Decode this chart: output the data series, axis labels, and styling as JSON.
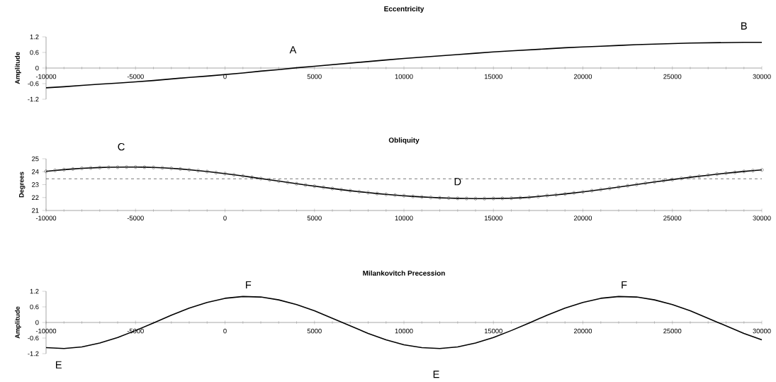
{
  "chart_data": [
    {
      "type": "line",
      "title": "Eccentricity",
      "ylabel": "Amplitude",
      "xlim": [
        -10000,
        30000
      ],
      "ylim": [
        -1.2,
        1.2
      ],
      "xticks": [
        -10000,
        -5000,
        0,
        5000,
        10000,
        15000,
        20000,
        25000,
        30000
      ],
      "yticks": [
        -1.2,
        -0.6,
        0,
        0.6,
        1.2
      ],
      "x": [
        -10000,
        -9000,
        -8000,
        -7000,
        -6000,
        -5000,
        -4000,
        -3000,
        -2000,
        -1000,
        0,
        1000,
        2000,
        3000,
        4000,
        5000,
        6000,
        7000,
        8000,
        9000,
        10000,
        11000,
        12000,
        13000,
        14000,
        15000,
        16000,
        17000,
        18000,
        19000,
        20000,
        21000,
        22000,
        23000,
        24000,
        25000,
        26000,
        27000,
        28000,
        29000,
        30000
      ],
      "series": [
        {
          "color": "#000000",
          "values": [
            -0.76,
            -0.72,
            -0.67,
            -0.62,
            -0.58,
            -0.53,
            -0.48,
            -0.42,
            -0.36,
            -0.31,
            -0.25,
            -0.19,
            -0.12,
            -0.06,
            0.01,
            0.07,
            0.13,
            0.19,
            0.25,
            0.31,
            0.37,
            0.42,
            0.47,
            0.52,
            0.57,
            0.62,
            0.66,
            0.7,
            0.74,
            0.78,
            0.81,
            0.84,
            0.87,
            0.9,
            0.92,
            0.94,
            0.96,
            0.97,
            0.98,
            0.99,
            0.99
          ]
        }
      ],
      "annotations": [
        {
          "text": "A",
          "x": 3800,
          "y": 0
        },
        {
          "text": "B",
          "x": 29000,
          "y": 0.99
        }
      ]
    },
    {
      "type": "line",
      "title": "Obliquity",
      "ylabel": "Degrees",
      "xlim": [
        -10000,
        30000
      ],
      "ylim": [
        21,
        25
      ],
      "marker": "circle",
      "xticks": [
        -10000,
        -5000,
        0,
        5000,
        10000,
        15000,
        20000,
        25000,
        30000
      ],
      "yticks": [
        21,
        22,
        23,
        24,
        25
      ],
      "x": [
        -10000,
        -9500,
        -9000,
        -8500,
        -8000,
        -7500,
        -7000,
        -6500,
        -6000,
        -5500,
        -5000,
        -4500,
        -4000,
        -3500,
        -3000,
        -2500,
        -2000,
        -1500,
        -1000,
        -500,
        0,
        500,
        1000,
        1500,
        2000,
        2500,
        3000,
        3500,
        4000,
        4500,
        5000,
        5500,
        6000,
        6500,
        7000,
        7500,
        8000,
        8500,
        9000,
        9500,
        10000,
        10500,
        11000,
        11500,
        12000,
        12500,
        13000,
        13500,
        14000,
        14500,
        15000,
        15500,
        16000,
        16500,
        17000,
        17500,
        18000,
        18500,
        19000,
        19500,
        20000,
        20500,
        21000,
        21500,
        22000,
        22500,
        23000,
        23500,
        24000,
        24500,
        25000,
        25500,
        26000,
        26500,
        27000,
        27500,
        28000,
        28500,
        29000,
        29500,
        30000
      ],
      "series": [
        {
          "color": "#000000",
          "values": [
            24.03,
            24.1,
            24.16,
            24.21,
            24.26,
            24.29,
            24.32,
            24.34,
            24.35,
            24.36,
            24.36,
            24.35,
            24.33,
            24.3,
            24.26,
            24.21,
            24.15,
            24.08,
            24.01,
            23.93,
            23.85,
            23.76,
            23.67,
            23.57,
            23.47,
            23.37,
            23.27,
            23.17,
            23.07,
            22.97,
            22.88,
            22.79,
            22.7,
            22.61,
            22.53,
            22.45,
            22.38,
            22.31,
            22.25,
            22.19,
            22.14,
            22.09,
            22.05,
            22.01,
            21.98,
            21.96,
            21.94,
            21.93,
            21.92,
            21.92,
            21.93,
            21.94,
            21.95,
            21.98,
            22.02,
            22.08,
            22.15,
            22.21,
            22.28,
            22.36,
            22.44,
            22.53,
            22.62,
            22.71,
            22.81,
            22.91,
            23.01,
            23.11,
            23.21,
            23.3,
            23.39,
            23.48,
            23.57,
            23.65,
            23.73,
            23.81,
            23.88,
            23.95,
            24.02,
            24.08,
            24.14
          ]
        }
      ],
      "ref_lines": [
        {
          "axis": "y",
          "value": 23.45,
          "line_style": "dashed"
        }
      ],
      "annotations": [
        {
          "text": "C",
          "x": -5800,
          "y": 24.36
        },
        {
          "text": "D",
          "x": 13000,
          "y": 23.45
        }
      ]
    },
    {
      "type": "line",
      "title": "Milankovitch Precession",
      "ylabel": "Amplitude",
      "xlim": [
        -10000,
        30000
      ],
      "ylim": [
        -1.2,
        1.2
      ],
      "xticks": [
        -10000,
        -5000,
        0,
        5000,
        10000,
        15000,
        20000,
        25000,
        30000
      ],
      "yticks": [
        -1.2,
        -0.6,
        0,
        0.6,
        1.2
      ],
      "x": [
        -10000,
        -9000,
        -8000,
        -7000,
        -6000,
        -5000,
        -4000,
        -3000,
        -2000,
        -1000,
        0,
        1000,
        2000,
        3000,
        4000,
        5000,
        6000,
        7000,
        8000,
        9000,
        10000,
        11000,
        12000,
        13000,
        14000,
        15000,
        16000,
        17000,
        18000,
        19000,
        20000,
        21000,
        22000,
        23000,
        24000,
        25000,
        26000,
        27000,
        28000,
        29000,
        30000
      ],
      "series": [
        {
          "color": "#000000",
          "values": [
            -0.97,
            -1.0,
            -0.94,
            -0.79,
            -0.58,
            -0.31,
            -0.02,
            0.28,
            0.55,
            0.77,
            0.93,
            1.0,
            0.98,
            0.87,
            0.69,
            0.45,
            0.16,
            -0.13,
            -0.42,
            -0.67,
            -0.86,
            -0.97,
            -1.0,
            -0.94,
            -0.79,
            -0.58,
            -0.31,
            -0.02,
            0.28,
            0.55,
            0.77,
            0.93,
            1.0,
            0.98,
            0.87,
            0.69,
            0.45,
            0.16,
            -0.13,
            -0.42,
            -0.67
          ]
        }
      ],
      "annotations": [
        {
          "text": "E",
          "x": -9300,
          "y": -1.0
        },
        {
          "text": "F",
          "x": 1300,
          "y": 1.0
        },
        {
          "text": "E",
          "x": 11800,
          "y": -1.0
        },
        {
          "text": "F",
          "x": 22300,
          "y": 1.0
        }
      ]
    }
  ]
}
